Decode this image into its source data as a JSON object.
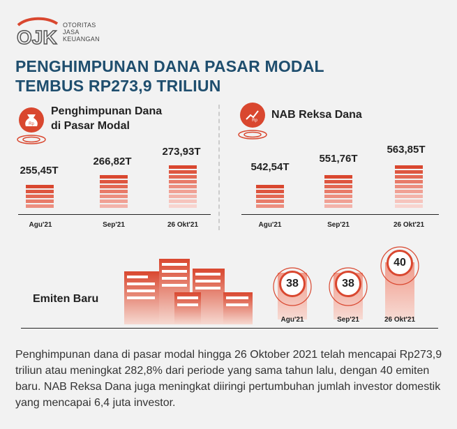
{
  "brand": {
    "logo_letters": "OJK",
    "line1": "OTORITAS",
    "line2": "JASA",
    "line3": "KEUANGAN"
  },
  "title": {
    "line1": "PENGHIMPUNAN DANA PASAR MODAL",
    "line2": "TEMBUS RP273,9 TRILIUN"
  },
  "funds": {
    "heading_line1": "Penghimpunan Dana",
    "heading_line2": "di Pasar Modal",
    "icon_text": "Rp",
    "periods": [
      "Agu'21",
      "Sep'21",
      "26 Okt'21"
    ],
    "values": [
      "255,45T",
      "266,82T",
      "273,93T"
    ]
  },
  "nab": {
    "heading": "NAB Reksa Dana",
    "icon_text": "Rp",
    "periods": [
      "Agu'21",
      "Sep'21",
      "26 Okt'21"
    ],
    "values": [
      "542,54T",
      "551,76T",
      "563,85T"
    ]
  },
  "issuers": {
    "heading": "Emiten Baru",
    "periods": [
      "Agu'21",
      "Sep'21",
      "26 Okt'21"
    ],
    "values": [
      "38",
      "38",
      "40"
    ]
  },
  "colors": {
    "accent": "#d9472f",
    "title": "#1f4e6e",
    "text": "#333333"
  },
  "chart_data": [
    {
      "type": "bar",
      "categories": [
        "Agu'21",
        "Sep'21",
        "26 Okt'21"
      ],
      "values": [
        255.45,
        266.82,
        273.93
      ],
      "title": "Penghimpunan Dana di Pasar Modal"
    },
    {
      "type": "bar",
      "categories": [
        "Agu'21",
        "Sep'21",
        "26 Okt'21"
      ],
      "values": [
        542.54,
        551.76,
        563.85
      ],
      "title": "NAB Reksa Dana"
    },
    {
      "type": "bar",
      "categories": [
        "Agu'21",
        "Sep'21",
        "26 Okt'21"
      ],
      "values": [
        38,
        38,
        40
      ],
      "title": "Emiten Baru"
    }
  ],
  "paragraph": "Penghimpunan dana di pasar modal hingga 26 Oktober 2021 telah mencapai Rp273,9 triliun atau meningkat 282,8% dari periode yang sama tahun lalu, dengan 40 emiten baru. NAB Reksa Dana juga meningkat diiringi pertumbuhan jumlah investor domestik yang mencapai 6,4 juta investor."
}
